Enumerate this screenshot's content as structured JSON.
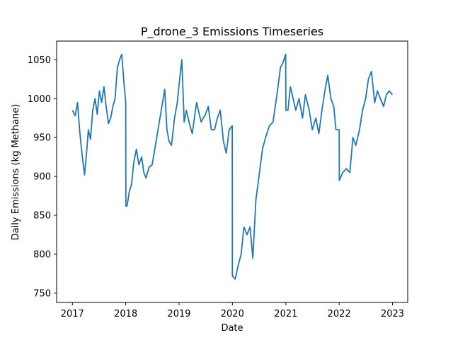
{
  "chart_data": {
    "type": "line",
    "title": "P_drone_3 Emissions Timeseries",
    "xlabel": "Date",
    "ylabel": "Daily Emissions (kg Methane)",
    "xlim": [
      "2016-09-15",
      "2023-04-15"
    ],
    "ylim": [
      738,
      1074
    ],
    "x_ticks": [
      "2017-01-01",
      "2018-01-01",
      "2019-01-01",
      "2020-01-01",
      "2021-01-01",
      "2022-01-01",
      "2023-01-01"
    ],
    "x_tick_labels": [
      "2017",
      "2018",
      "2019",
      "2020",
      "2021",
      "2022",
      "2023"
    ],
    "y_ticks": [
      750,
      800,
      850,
      900,
      950,
      1000,
      1050
    ],
    "y_tick_labels": [
      "750",
      "800",
      "850",
      "900",
      "950",
      "1000",
      "1050"
    ],
    "grid": false,
    "series": [
      {
        "color": "#1f77b4",
        "x": [
          "2017-01-01",
          "2017-01-20",
          "2017-02-05",
          "2017-02-20",
          "2017-03-10",
          "2017-03-25",
          "2017-04-10",
          "2017-04-20",
          "2017-05-05",
          "2017-05-20",
          "2017-06-05",
          "2017-06-20",
          "2017-07-05",
          "2017-07-20",
          "2017-08-05",
          "2017-08-20",
          "2017-09-05",
          "2017-09-20",
          "2017-10-05",
          "2017-10-20",
          "2017-11-05",
          "2017-11-20",
          "2017-12-05",
          "2017-12-20",
          "2018-01-01",
          "2018-01-02",
          "2018-01-10",
          "2018-01-25",
          "2018-02-10",
          "2018-02-25",
          "2018-03-15",
          "2018-04-01",
          "2018-04-20",
          "2018-05-05",
          "2018-05-20",
          "2018-06-10",
          "2018-07-01",
          "2018-08-01",
          "2018-09-01",
          "2018-09-25",
          "2018-10-10",
          "2018-10-25",
          "2018-11-10",
          "2018-12-01",
          "2018-12-20",
          "2019-01-05",
          "2019-01-20",
          "2019-02-05",
          "2019-02-20",
          "2019-03-10",
          "2019-04-01",
          "2019-05-01",
          "2019-06-01",
          "2019-07-01",
          "2019-07-20",
          "2019-08-10",
          "2019-09-01",
          "2019-09-20",
          "2019-10-10",
          "2019-11-01",
          "2019-11-20",
          "2019-12-10",
          "2019-12-31",
          "2020-01-01",
          "2020-01-20",
          "2020-02-10",
          "2020-03-01",
          "2020-03-20",
          "2020-04-10",
          "2020-05-01",
          "2020-05-20",
          "2020-06-10",
          "2020-07-01",
          "2020-07-25",
          "2020-08-15",
          "2020-09-10",
          "2020-10-05",
          "2020-11-01",
          "2020-11-25",
          "2020-12-10",
          "2020-12-31",
          "2021-01-01",
          "2021-01-15",
          "2021-02-01",
          "2021-02-20",
          "2021-03-10",
          "2021-04-01",
          "2021-04-25",
          "2021-05-15",
          "2021-06-10",
          "2021-07-01",
          "2021-07-25",
          "2021-08-15",
          "2021-09-05",
          "2021-09-25",
          "2021-10-15",
          "2021-11-05",
          "2021-11-25",
          "2021-12-10",
          "2022-01-01",
          "2022-01-02",
          "2022-01-25",
          "2022-02-20",
          "2022-03-15",
          "2022-04-05",
          "2022-04-25",
          "2022-05-20",
          "2022-06-10",
          "2022-07-01",
          "2022-07-20",
          "2022-08-10",
          "2022-09-01",
          "2022-09-20",
          "2022-10-10",
          "2022-11-01",
          "2022-11-20",
          "2022-12-10",
          "2022-12-31"
        ],
        "y": [
          985,
          978,
          995,
          958,
          925,
          902,
          935,
          960,
          948,
          985,
          1000,
          980,
          1010,
          995,
          1015,
          990,
          968,
          975,
          990,
          1000,
          1040,
          1050,
          1057,
          1020,
          995,
          862,
          862,
          880,
          890,
          918,
          935,
          915,
          925,
          905,
          898,
          912,
          915,
          950,
          985,
          1012,
          960,
          945,
          940,
          975,
          995,
          1025,
          1050,
          970,
          985,
          970,
          955,
          995,
          970,
          980,
          990,
          960,
          960,
          975,
          985,
          945,
          930,
          960,
          965,
          772,
          768,
          786,
          800,
          835,
          825,
          835,
          795,
          870,
          900,
          935,
          950,
          965,
          970,
          1005,
          1040,
          1045,
          1057,
          985,
          985,
          1015,
          1000,
          985,
          1000,
          975,
          1005,
          985,
          960,
          975,
          955,
          985,
          1010,
          1030,
          1000,
          990,
          960,
          960,
          895,
          905,
          910,
          905,
          950,
          940,
          960,
          985,
          1000,
          1025,
          1035,
          995,
          1010,
          1000,
          990,
          1005,
          1010,
          1005
        ]
      }
    ]
  }
}
